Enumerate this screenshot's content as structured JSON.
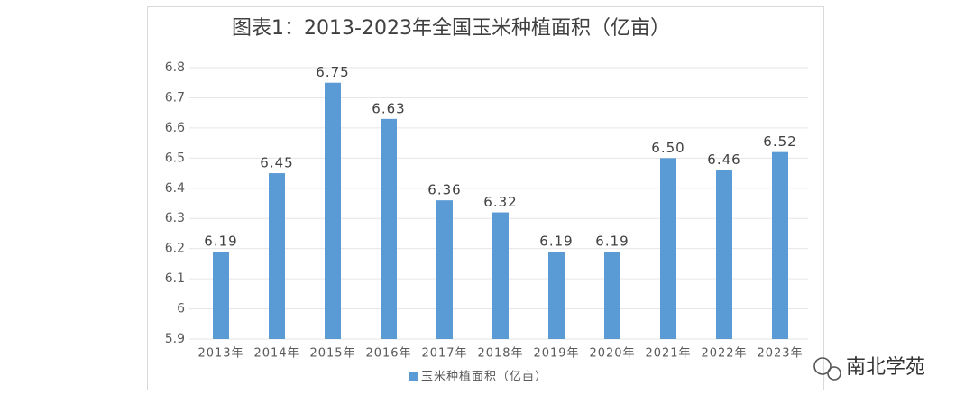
{
  "chart_data": {
    "type": "bar",
    "title": "图表1：2013-2023年全国玉米种植面积（亿亩）",
    "categories": [
      "2013年",
      "2014年",
      "2015年",
      "2016年",
      "2017年",
      "2018年",
      "2019年",
      "2020年",
      "2021年",
      "2022年",
      "2023年"
    ],
    "series": [
      {
        "name": "玉米种植面积（亿亩）",
        "color": "#5b9bd5",
        "values": [
          6.19,
          6.45,
          6.75,
          6.63,
          6.36,
          6.32,
          6.19,
          6.19,
          6.5,
          6.46,
          6.52
        ],
        "value_labels": [
          "6.19",
          "6.45",
          "6.75",
          "6.63",
          "6.36",
          "6.32",
          "6.19",
          "6.19",
          "6.50",
          "6.46",
          "6.52"
        ]
      }
    ],
    "ylim": [
      5.9,
      6.8
    ],
    "yticks": [
      5.9,
      6,
      6.1,
      6.2,
      6.3,
      6.4,
      6.5,
      6.6,
      6.7,
      6.8
    ],
    "grid": true,
    "legend": "bottom"
  },
  "watermark": "南北学苑"
}
